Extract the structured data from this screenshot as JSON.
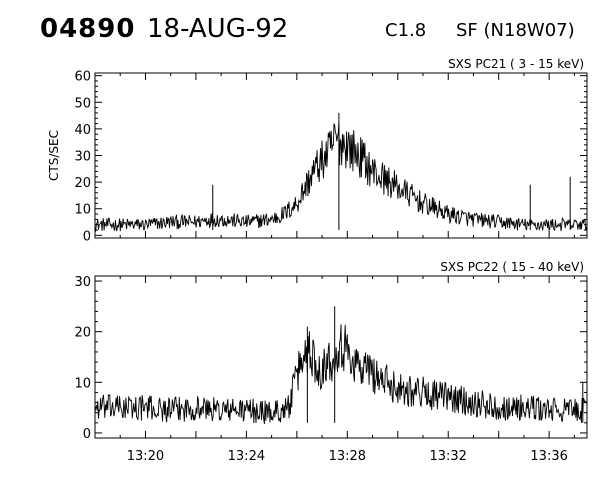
{
  "header": {
    "event_id": "04890",
    "date": "18-AUG-92",
    "goes_class": "C1.8",
    "flare_info": "SF (N18W07)"
  },
  "chart_data": [
    {
      "type": "line",
      "title": "SXS PC21   (  3 - 15 keV)",
      "ylabel": "CTS/SEC",
      "xlabel": "",
      "xlim": [
        "13:18",
        "13:37:30"
      ],
      "ylim": [
        -1,
        61
      ],
      "yticks": [
        0,
        10,
        20,
        30,
        40,
        50,
        60
      ],
      "xticks": [
        "13:20",
        "13:24",
        "13:28",
        "13:32",
        "13:36"
      ],
      "grid": false,
      "series": [
        {
          "x": [
            "13:18:00",
            "13:19:00",
            "13:20:00",
            "13:21:00",
            "13:22:00",
            "13:22:30",
            "13:23:00",
            "13:24:00",
            "13:25:00",
            "13:25:30",
            "13:26:00",
            "13:26:20",
            "13:26:40",
            "13:27:00",
            "13:27:20",
            "13:27:30",
            "13:27:45",
            "13:28:00",
            "13:28:20",
            "13:28:40",
            "13:29:00",
            "13:29:30",
            "13:30:00",
            "13:30:30",
            "13:31:00",
            "13:31:30",
            "13:32:00",
            "13:33:00",
            "13:34:00",
            "13:35:00",
            "13:36:00",
            "13:37:00",
            "13:37:30"
          ],
          "values": [
            4,
            4,
            4,
            5,
            5,
            6,
            6,
            5,
            6,
            8,
            12,
            18,
            24,
            28,
            32,
            36,
            35,
            34,
            31,
            28,
            24,
            21,
            18,
            15,
            12,
            10,
            8,
            6,
            5,
            4,
            4,
            4,
            4
          ]
        }
      ],
      "spikes": [
        {
          "x": "13:22:40",
          "value": 19
        },
        {
          "x": "13:27:40",
          "value": 46
        },
        {
          "x": "13:35:15",
          "value": 19
        },
        {
          "x": "13:36:50",
          "value": 22
        }
      ]
    },
    {
      "type": "line",
      "title": "SXS PC22   ( 15 - 40 keV)",
      "ylabel": "",
      "xlabel": "",
      "xlim": [
        "13:18",
        "13:37:30"
      ],
      "ylim": [
        -1,
        31
      ],
      "yticks": [
        0,
        10,
        20,
        30
      ],
      "xticks": [
        "13:20",
        "13:24",
        "13:28",
        "13:32",
        "13:36"
      ],
      "grid": false,
      "series": [
        {
          "x": [
            "13:18:00",
            "13:19:00",
            "13:20:00",
            "13:21:00",
            "13:22:00",
            "13:23:00",
            "13:24:00",
            "13:25:00",
            "13:25:40",
            "13:25:50",
            "13:26:10",
            "13:26:30",
            "13:26:45",
            "13:27:00",
            "13:27:10",
            "13:27:20",
            "13:27:40",
            "13:28:00",
            "13:28:30",
            "13:29:00",
            "13:29:30",
            "13:30:00",
            "13:31:00",
            "13:32:00",
            "13:33:00",
            "13:34:00",
            "13:35:00",
            "13:36:00",
            "13:37:00",
            "13:37:30"
          ],
          "values": [
            5,
            5,
            5,
            4.5,
            5,
            4.5,
            4.5,
            4,
            5,
            8,
            14,
            17,
            13,
            13,
            14,
            14,
            18,
            16,
            13,
            12,
            10,
            9,
            8,
            7,
            6,
            5,
            5,
            4.5,
            4.5,
            4.5
          ]
        }
      ],
      "spikes": [
        {
          "x": "13:26:25",
          "value": 21
        },
        {
          "x": "13:27:30",
          "value": 25
        },
        {
          "x": "13:37:20",
          "value": 10
        }
      ]
    }
  ]
}
